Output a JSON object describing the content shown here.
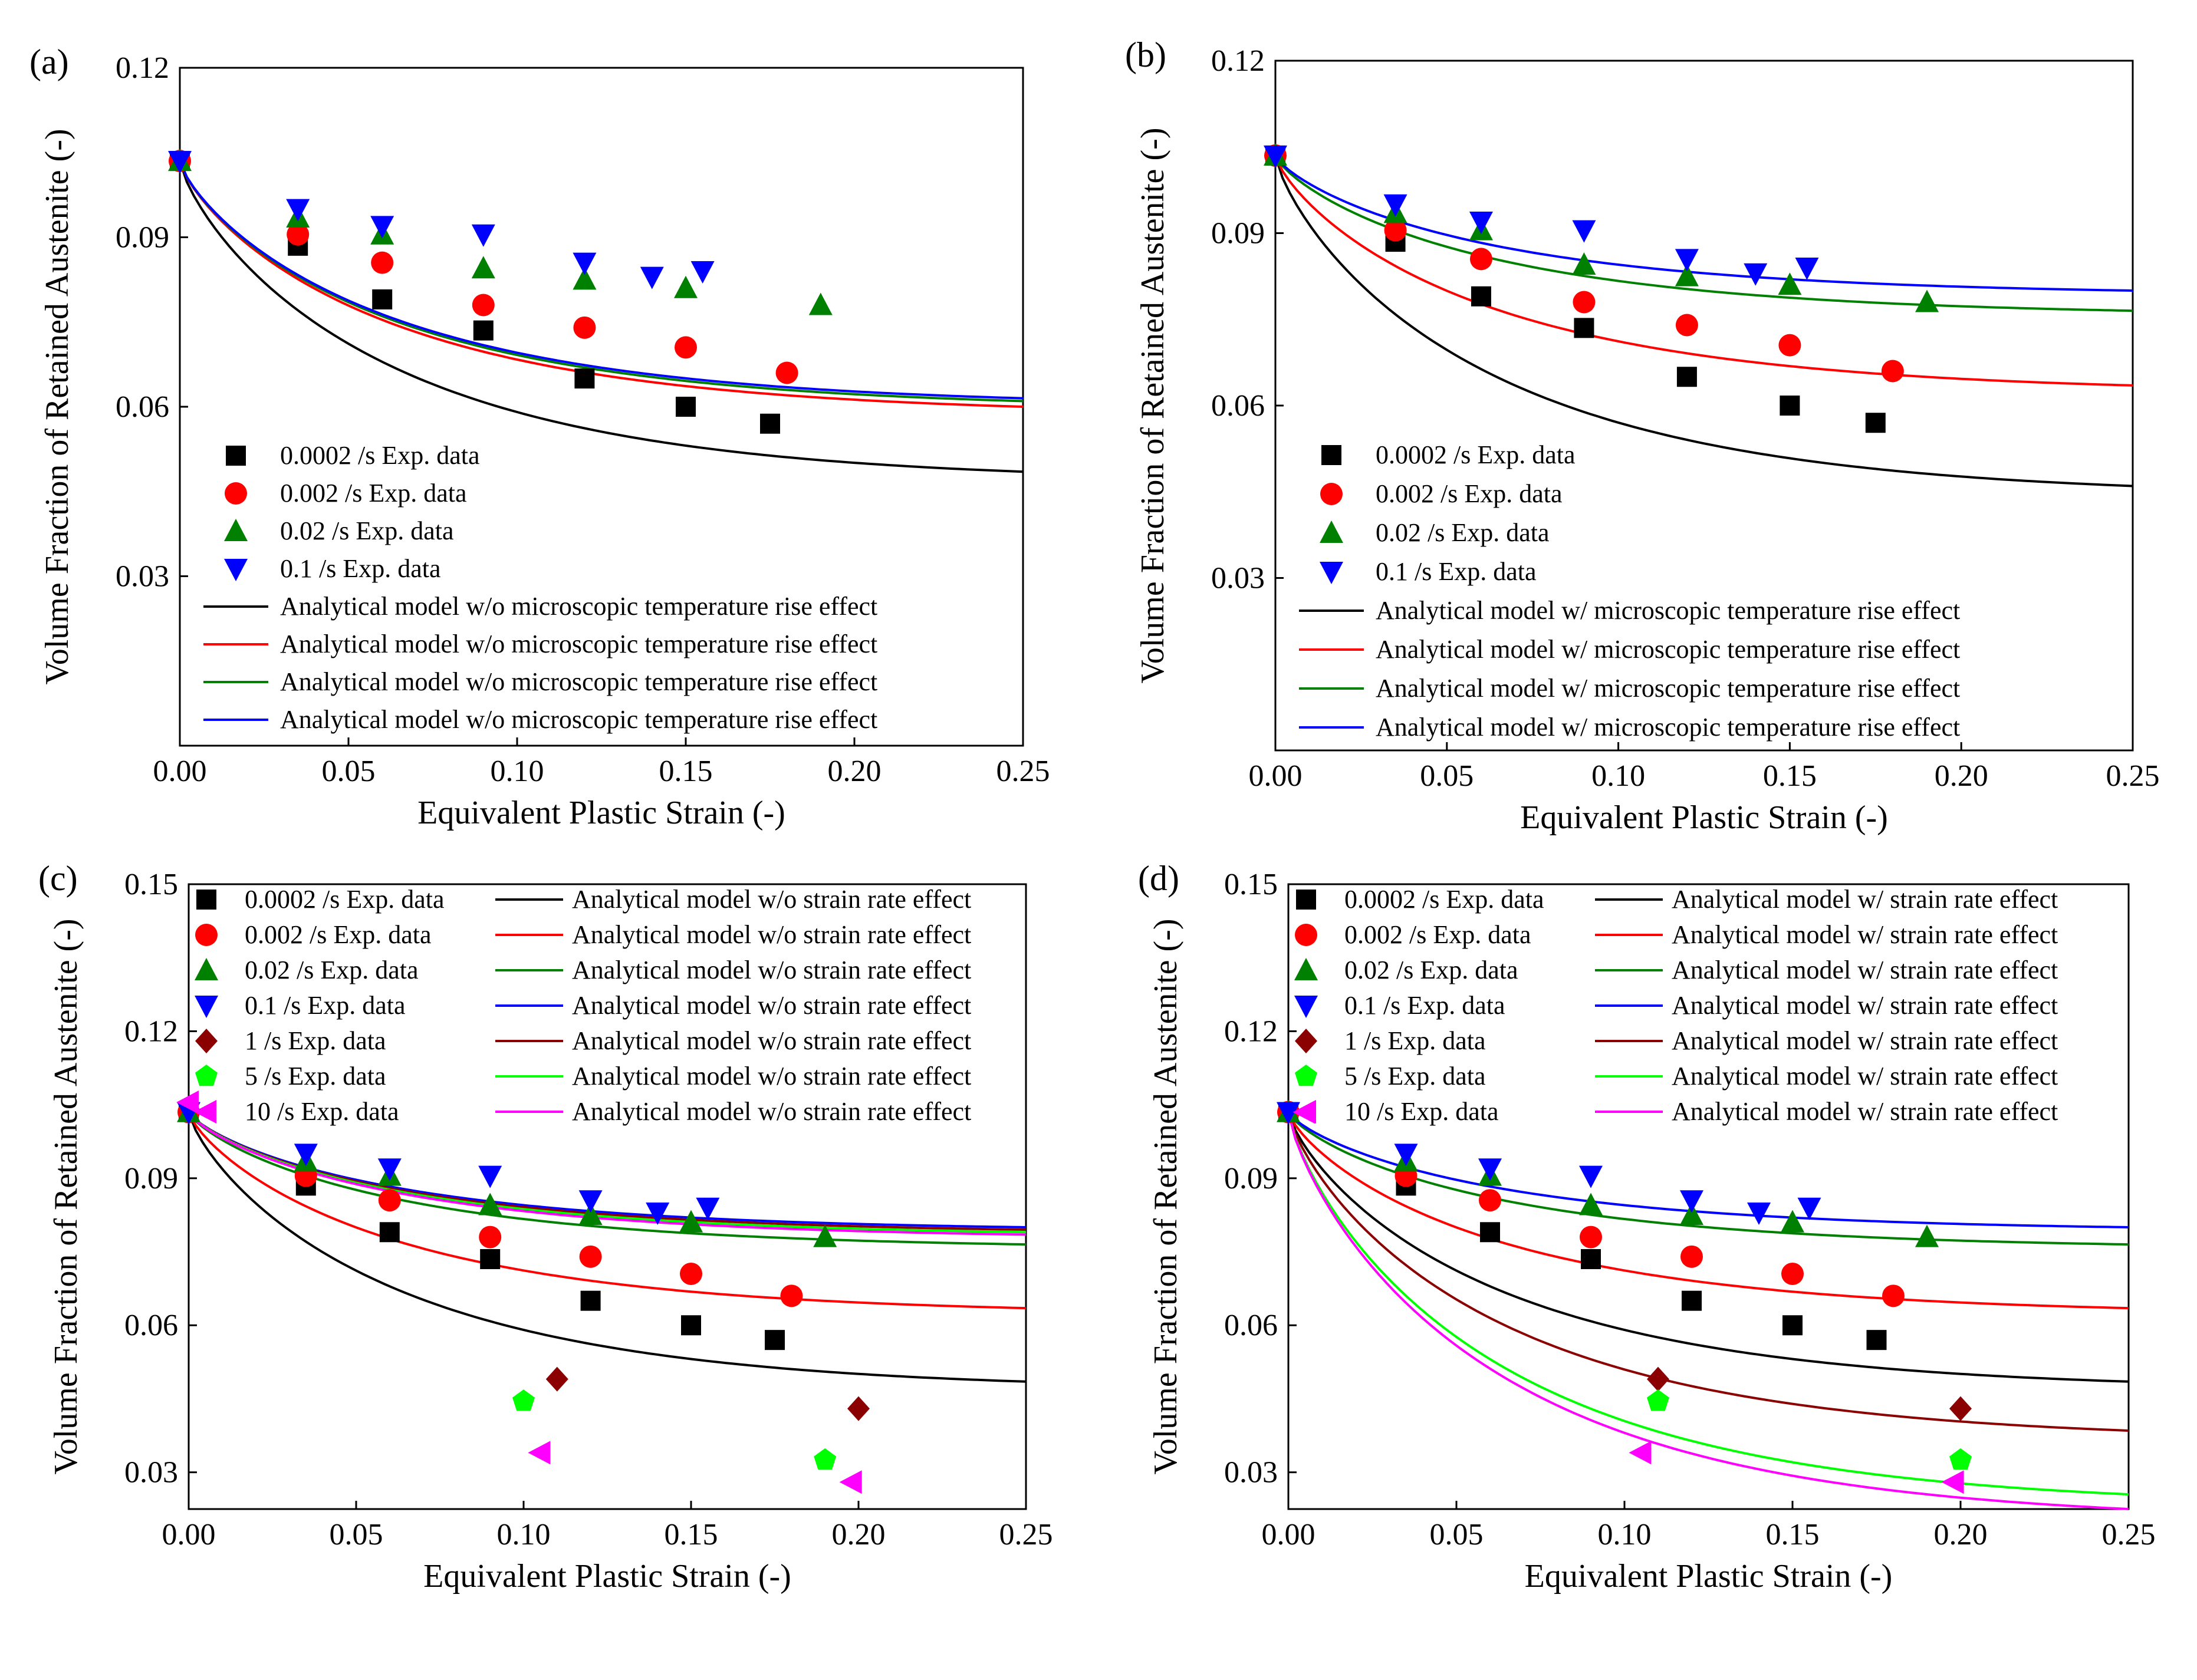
{
  "chart_data": [
    {
      "panel": "(a)",
      "type": "scatter+line",
      "xlabel": "Equivalent Plastic Strain (-)",
      "ylabel": "Volume Fraction of Retained Austenite (-)",
      "xlim": [
        0,
        0.25
      ],
      "ylim": [
        0.0,
        0.12
      ],
      "xticks": [
        "0.00",
        "0.05",
        "0.10",
        "0.15",
        "0.20",
        "0.25"
      ],
      "yticks": [
        "0.03",
        "0.06",
        "0.09",
        "0.12"
      ],
      "legend_position": "bottom-left",
      "scatter_series": [
        {
          "name": "0.0002 /s  Exp. data",
          "color": "#000000",
          "marker": "square",
          "x": [
            0.0,
            0.035,
            0.06,
            0.09,
            0.12,
            0.15,
            0.175
          ],
          "y": [
            0.1035,
            0.0885,
            0.079,
            0.0735,
            0.065,
            0.06,
            0.057
          ]
        },
        {
          "name": "0.002 /s  Exp. data",
          "color": "#ff0000",
          "marker": "circle",
          "x": [
            0.0,
            0.035,
            0.06,
            0.09,
            0.12,
            0.15,
            0.18
          ],
          "y": [
            0.1035,
            0.0905,
            0.0855,
            0.078,
            0.074,
            0.0705,
            0.066
          ]
        },
        {
          "name": "0.02 /s  Exp. data",
          "color": "#008000",
          "marker": "triangle-up",
          "x": [
            0.0,
            0.035,
            0.06,
            0.09,
            0.12,
            0.15,
            0.19
          ],
          "y": [
            0.1035,
            0.0935,
            0.0905,
            0.0845,
            0.0825,
            0.081,
            0.078
          ]
        },
        {
          "name": "0.1 /s  Exp. data",
          "color": "#0000ff",
          "marker": "triangle-down",
          "x": [
            0.0,
            0.035,
            0.06,
            0.09,
            0.12,
            0.14,
            0.155
          ],
          "y": [
            0.1035,
            0.095,
            0.092,
            0.0905,
            0.0855,
            0.083,
            0.084
          ]
        }
      ],
      "line_series": [
        {
          "name": "Analytical model w/o microscopic temperature rise effect",
          "color": "#000000",
          "y0": 0.1035,
          "y_end": 0.0485
        },
        {
          "name": "Analytical model w/o microscopic temperature rise effect",
          "color": "#ff0000",
          "y0": 0.1035,
          "y_end": 0.06
        },
        {
          "name": "Analytical model w/o microscopic temperature rise effect",
          "color": "#008000",
          "y0": 0.1035,
          "y_end": 0.061
        },
        {
          "name": "Analytical model w/o microscopic temperature rise effect",
          "color": "#0000ff",
          "y0": 0.1035,
          "y_end": 0.0615
        }
      ]
    },
    {
      "panel": "(b)",
      "type": "scatter+line",
      "xlabel": "Equivalent Plastic Strain (-)",
      "ylabel": "Volume Fraction of Retained Austenite (-)",
      "xlim": [
        0,
        0.25
      ],
      "ylim": [
        0.0,
        0.12
      ],
      "xticks": [
        "0.00",
        "0.05",
        "0.10",
        "0.15",
        "0.20",
        "0.25"
      ],
      "yticks": [
        "0.03",
        "0.06",
        "0.09",
        "0.12"
      ],
      "legend_position": "bottom-left",
      "scatter_series": [
        {
          "name": "0.0002 /s Exp. data",
          "color": "#000000",
          "marker": "square",
          "x": [
            0.0,
            0.035,
            0.06,
            0.09,
            0.12,
            0.15,
            0.175
          ],
          "y": [
            0.1035,
            0.0885,
            0.079,
            0.0735,
            0.065,
            0.06,
            0.057
          ]
        },
        {
          "name": "0.002 /s Exp. data",
          "color": "#ff0000",
          "marker": "circle",
          "x": [
            0.0,
            0.035,
            0.06,
            0.09,
            0.12,
            0.15,
            0.18
          ],
          "y": [
            0.1035,
            0.0905,
            0.0855,
            0.078,
            0.074,
            0.0705,
            0.066
          ]
        },
        {
          "name": "0.02 /s Exp. data",
          "color": "#008000",
          "marker": "triangle-up",
          "x": [
            0.0,
            0.035,
            0.06,
            0.09,
            0.12,
            0.15,
            0.19
          ],
          "y": [
            0.1035,
            0.0935,
            0.0905,
            0.0845,
            0.0825,
            0.081,
            0.078
          ]
        },
        {
          "name": "0.1 /s Exp. data",
          "color": "#0000ff",
          "marker": "triangle-down",
          "x": [
            0.0,
            0.035,
            0.06,
            0.09,
            0.12,
            0.14,
            0.155
          ],
          "y": [
            0.1035,
            0.095,
            0.092,
            0.0905,
            0.0855,
            0.083,
            0.084
          ]
        }
      ],
      "line_series": [
        {
          "name": "Analytical model w/ microscopic temperature rise effect",
          "color": "#000000",
          "y0": 0.1035,
          "y_end": 0.046
        },
        {
          "name": "Analytical model w/ microscopic temperature rise effect",
          "color": "#ff0000",
          "y0": 0.1035,
          "y_end": 0.0635
        },
        {
          "name": "Analytical model w/ microscopic temperature rise effect",
          "color": "#008000",
          "y0": 0.1035,
          "y_end": 0.0765
        },
        {
          "name": "Analytical model w/ microscopic temperature rise effect",
          "color": "#0000ff",
          "y0": 0.1035,
          "y_end": 0.08
        }
      ]
    },
    {
      "panel": "(c)",
      "type": "scatter+line",
      "xlabel": "Equivalent Plastic Strain (-)",
      "ylabel": "Volume Fraction of Retained Austenite (-)",
      "xlim": [
        0,
        0.25
      ],
      "ylim": [
        0.0225,
        0.15
      ],
      "xticks": [
        "0.00",
        "0.05",
        "0.10",
        "0.15",
        "0.20",
        "0.25"
      ],
      "yticks": [
        "0.03",
        "0.06",
        "0.09",
        "0.12",
        "0.15"
      ],
      "legend_position": "top",
      "scatter_series": [
        {
          "name": "0.0002 /s Exp. data",
          "color": "#000000",
          "marker": "square",
          "x": [
            0.0,
            0.035,
            0.06,
            0.09,
            0.12,
            0.15,
            0.175
          ],
          "y": [
            0.1035,
            0.0885,
            0.079,
            0.0735,
            0.065,
            0.06,
            0.057
          ]
        },
        {
          "name": "0.002 /s Exp. data",
          "color": "#ff0000",
          "marker": "circle",
          "x": [
            0.0,
            0.035,
            0.06,
            0.09,
            0.12,
            0.15,
            0.18
          ],
          "y": [
            0.1035,
            0.0905,
            0.0855,
            0.078,
            0.074,
            0.0705,
            0.066
          ]
        },
        {
          "name": "0.02 /s Exp. data",
          "color": "#008000",
          "marker": "triangle-up",
          "x": [
            0.0,
            0.035,
            0.06,
            0.09,
            0.12,
            0.15,
            0.19
          ],
          "y": [
            0.1035,
            0.0935,
            0.0905,
            0.0845,
            0.0825,
            0.081,
            0.078
          ]
        },
        {
          "name": "0.1 /s Exp. data",
          "color": "#0000ff",
          "marker": "triangle-down",
          "x": [
            0.0,
            0.035,
            0.06,
            0.09,
            0.12,
            0.14,
            0.155
          ],
          "y": [
            0.1035,
            0.095,
            0.092,
            0.0905,
            0.0855,
            0.083,
            0.084
          ]
        },
        {
          "name": "1 /s Exp. data",
          "color": "#8b0000",
          "marker": "diamond",
          "x": [
            0.11,
            0.2
          ],
          "y": [
            0.049,
            0.043
          ]
        },
        {
          "name": "5 /s Exp. data",
          "color": "#00ff00",
          "marker": "pentagon",
          "x": [
            0.1,
            0.19
          ],
          "y": [
            0.0445,
            0.0325
          ]
        },
        {
          "name": "10 /s Exp. data",
          "color": "#ff00ff",
          "marker": "triangle-left",
          "x": [
            0.0,
            0.105,
            0.198
          ],
          "y": [
            0.1055,
            0.034,
            0.028
          ]
        }
      ],
      "line_series": [
        {
          "name": "Analytical model w/o strain rate effect",
          "color": "#000000",
          "y0": 0.1035,
          "y_end": 0.0485
        },
        {
          "name": "Analytical model w/o strain rate effect",
          "color": "#ff0000",
          "y0": 0.1035,
          "y_end": 0.0635
        },
        {
          "name": "Analytical model w/o strain rate effect",
          "color": "#008000",
          "y0": 0.1035,
          "y_end": 0.0765
        },
        {
          "name": "Analytical model w/o strain rate effect",
          "color": "#0000ff",
          "y0": 0.1035,
          "y_end": 0.08
        },
        {
          "name": "Analytical model w/o strain rate effect",
          "color": "#8b0000",
          "y0": 0.1035,
          "y_end": 0.0795
        },
        {
          "name": "Analytical model w/o strain rate effect",
          "color": "#00ff00",
          "y0": 0.1035,
          "y_end": 0.079
        },
        {
          "name": "Analytical model w/o strain rate effect",
          "color": "#ff00ff",
          "y0": 0.1035,
          "y_end": 0.0785
        }
      ]
    },
    {
      "panel": "(d)",
      "type": "scatter+line",
      "xlabel": "Equivalent Plastic Strain (-)",
      "ylabel": "Volume Fraction of Retained Austenite (-)",
      "xlim": [
        0,
        0.25
      ],
      "ylim": [
        0.0225,
        0.15
      ],
      "xticks": [
        "0.00",
        "0.05",
        "0.10",
        "0.15",
        "0.20",
        "0.25"
      ],
      "yticks": [
        "0.03",
        "0.06",
        "0.09",
        "0.12",
        "0.15"
      ],
      "legend_position": "top",
      "scatter_series": [
        {
          "name": "0.0002 /s Exp. data",
          "color": "#000000",
          "marker": "square",
          "x": [
            0.0,
            0.035,
            0.06,
            0.09,
            0.12,
            0.15,
            0.175
          ],
          "y": [
            0.1035,
            0.0885,
            0.079,
            0.0735,
            0.065,
            0.06,
            0.057
          ]
        },
        {
          "name": "0.002 /s Exp. data",
          "color": "#ff0000",
          "marker": "circle",
          "x": [
            0.0,
            0.035,
            0.06,
            0.09,
            0.12,
            0.15,
            0.18
          ],
          "y": [
            0.1035,
            0.0905,
            0.0855,
            0.078,
            0.074,
            0.0705,
            0.066
          ]
        },
        {
          "name": "0.02 /s Exp. data",
          "color": "#008000",
          "marker": "triangle-up",
          "x": [
            0.0,
            0.035,
            0.06,
            0.09,
            0.12,
            0.15,
            0.19
          ],
          "y": [
            0.1035,
            0.0935,
            0.0905,
            0.0845,
            0.0825,
            0.081,
            0.078
          ]
        },
        {
          "name": "0.1 /s Exp. data",
          "color": "#0000ff",
          "marker": "triangle-down",
          "x": [
            0.0,
            0.035,
            0.06,
            0.09,
            0.12,
            0.14,
            0.155
          ],
          "y": [
            0.1035,
            0.095,
            0.092,
            0.0905,
            0.0855,
            0.083,
            0.084
          ]
        },
        {
          "name": "1 /s Exp. data",
          "color": "#8b0000",
          "marker": "diamond",
          "x": [
            0.11,
            0.2
          ],
          "y": [
            0.049,
            0.043
          ]
        },
        {
          "name": "5 /s Exp. data",
          "color": "#00ff00",
          "marker": "pentagon",
          "x": [
            0.11,
            0.2
          ],
          "y": [
            0.0445,
            0.0325
          ]
        },
        {
          "name": "10 /s Exp. data",
          "color": "#ff00ff",
          "marker": "triangle-left",
          "x": [
            0.005,
            0.105,
            0.198
          ],
          "y": [
            0.1035,
            0.034,
            0.028
          ]
        }
      ],
      "line_series": [
        {
          "name": "Analytical model w/ strain rate  effect",
          "color": "#000000",
          "y0": 0.1035,
          "y_end": 0.0485
        },
        {
          "name": "Analytical model w/ strain rate effect",
          "color": "#ff0000",
          "y0": 0.1035,
          "y_end": 0.0635
        },
        {
          "name": "Analytical model w/ strain rate effect",
          "color": "#008000",
          "y0": 0.1035,
          "y_end": 0.0765
        },
        {
          "name": "Analytical model w/ strain rate effect",
          "color": "#0000ff",
          "y0": 0.1035,
          "y_end": 0.08
        },
        {
          "name": "Analytical model w/ strain rate effect",
          "color": "#8b0000",
          "y0": 0.1035,
          "y_end": 0.0385
        },
        {
          "name": "Analytical model w/ strain rate effect",
          "color": "#00ff00",
          "y0": 0.1035,
          "y_end": 0.0255
        },
        {
          "name": "Analytical model w/ strain rate effect",
          "color": "#ff00ff",
          "y0": 0.1035,
          "y_end": 0.0225
        }
      ]
    }
  ]
}
